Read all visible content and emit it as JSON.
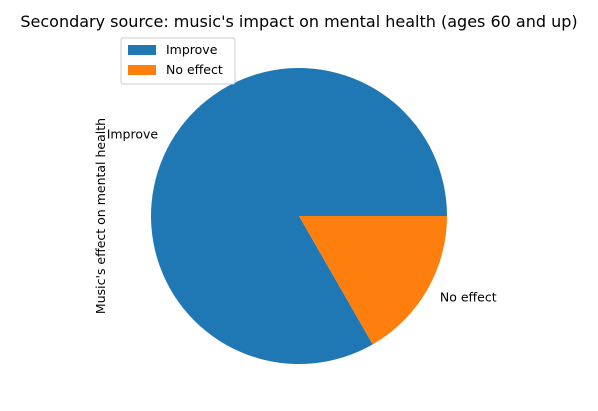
{
  "chart_data": {
    "type": "pie",
    "title": "Secondary source: music's impact on mental health (ages 60 and up)",
    "ylabel": "Music's effect on mental health",
    "categories": [
      "Improve",
      "No effect"
    ],
    "values": [
      83.3,
      16.7
    ],
    "colors": [
      "#1f77b4",
      "#ff7f0e"
    ],
    "start_angle": 0,
    "direction": "counterclockwise",
    "legend": {
      "placement": "upper-left",
      "entries": [
        "Improve",
        "No effect"
      ]
    }
  }
}
